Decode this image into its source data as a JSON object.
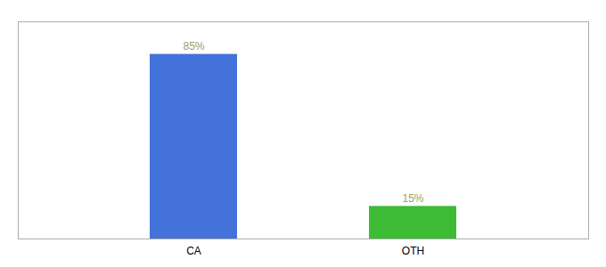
{
  "chart_data": {
    "type": "bar",
    "categories": [
      "CA",
      "OTH"
    ],
    "values": [
      85,
      15
    ],
    "value_labels": [
      "85%",
      "15%"
    ],
    "colors": [
      "#4472db",
      "#3dbb35"
    ],
    "ylim": [
      0,
      100
    ],
    "data_labels": true,
    "tick_labels": "x"
  }
}
